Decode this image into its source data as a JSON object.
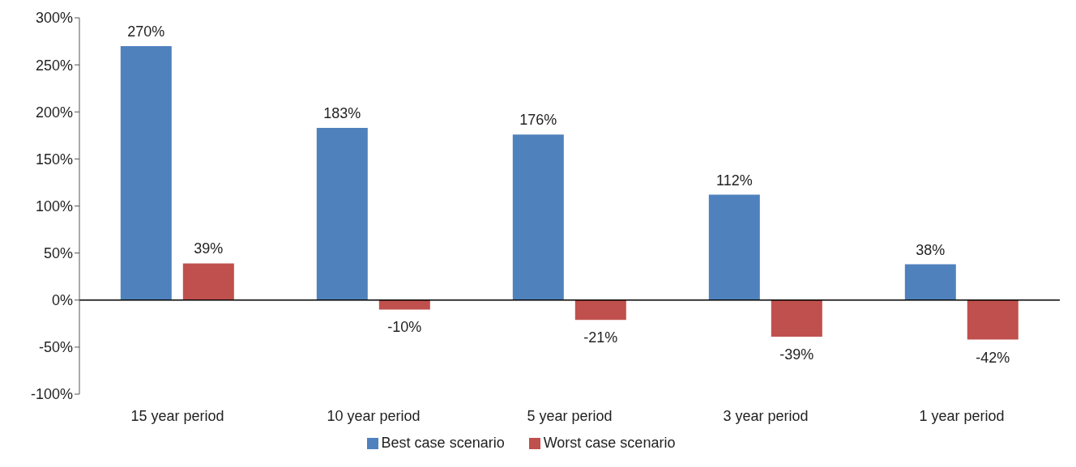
{
  "chart_data": {
    "type": "bar",
    "categories": [
      "15 year period",
      "10 year period",
      "5 year period",
      "3 year period",
      "1 year period"
    ],
    "series": [
      {
        "name": "Best case scenario",
        "color": "#4f81bd",
        "values": [
          270,
          183,
          176,
          112,
          38
        ],
        "value_labels": [
          "270%",
          "183%",
          "176%",
          "112%",
          "38%"
        ]
      },
      {
        "name": "Worst case scenario",
        "color": "#c0504d",
        "values": [
          39,
          -10,
          -21,
          -39,
          -42
        ],
        "value_labels": [
          "39%",
          "-10%",
          "-21%",
          "-39%",
          "-42%"
        ]
      }
    ],
    "ylim": [
      -100,
      300
    ],
    "yticks": [
      {
        "value": -100,
        "label": "-100%"
      },
      {
        "value": -50,
        "label": "-50%"
      },
      {
        "value": 0,
        "label": "0%"
      },
      {
        "value": 50,
        "label": "50%"
      },
      {
        "value": 100,
        "label": "100%"
      },
      {
        "value": 150,
        "label": "150%"
      },
      {
        "value": 200,
        "label": "200%"
      },
      {
        "value": 250,
        "label": "250%"
      },
      {
        "value": 300,
        "label": "300%"
      }
    ],
    "legend": "bottom"
  }
}
